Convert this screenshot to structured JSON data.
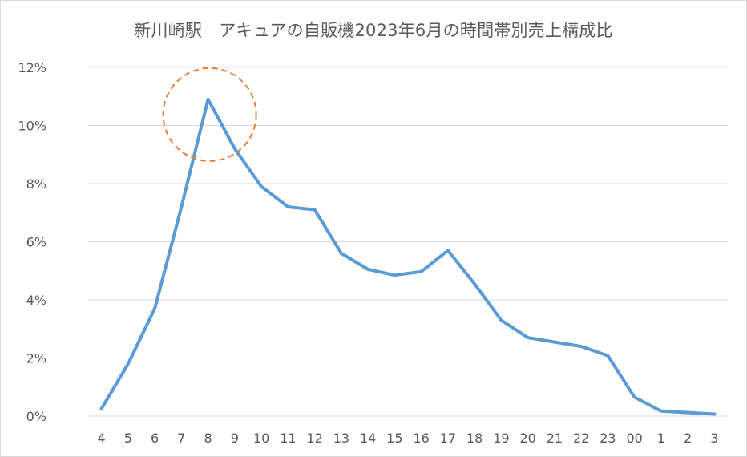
{
  "chart_data": {
    "type": "line",
    "title": "新川崎駅　アキュアの自販機2023年6月の時間帯別売上構成比",
    "xlabel": "",
    "ylabel": "",
    "categories": [
      "4",
      "5",
      "6",
      "7",
      "8",
      "9",
      "10",
      "11",
      "12",
      "13",
      "14",
      "15",
      "16",
      "17",
      "18",
      "19",
      "20",
      "21",
      "22",
      "23",
      "00",
      "1",
      "2",
      "3"
    ],
    "series": [
      {
        "values": [
          0.25,
          1.8,
          3.7,
          7.2,
          10.9,
          9.2,
          7.9,
          7.2,
          7.1,
          5.6,
          5.05,
          4.85,
          4.97,
          5.7,
          4.55,
          3.3,
          2.7,
          2.55,
          2.4,
          2.08,
          0.65,
          0.17,
          0.12,
          0.07
        ],
        "color": "#5b9bd5"
      }
    ],
    "ylim": [
      0,
      12
    ],
    "y_ticks": [
      0,
      2,
      4,
      6,
      8,
      10,
      12
    ],
    "y_tick_labels": [
      "0%",
      "2%",
      "4%",
      "6%",
      "8%",
      "10%",
      "12%"
    ],
    "grid": true,
    "legend": "none",
    "highlight": {
      "category": "8",
      "shape": "dashed-circle",
      "color": "#ed7d31"
    }
  }
}
